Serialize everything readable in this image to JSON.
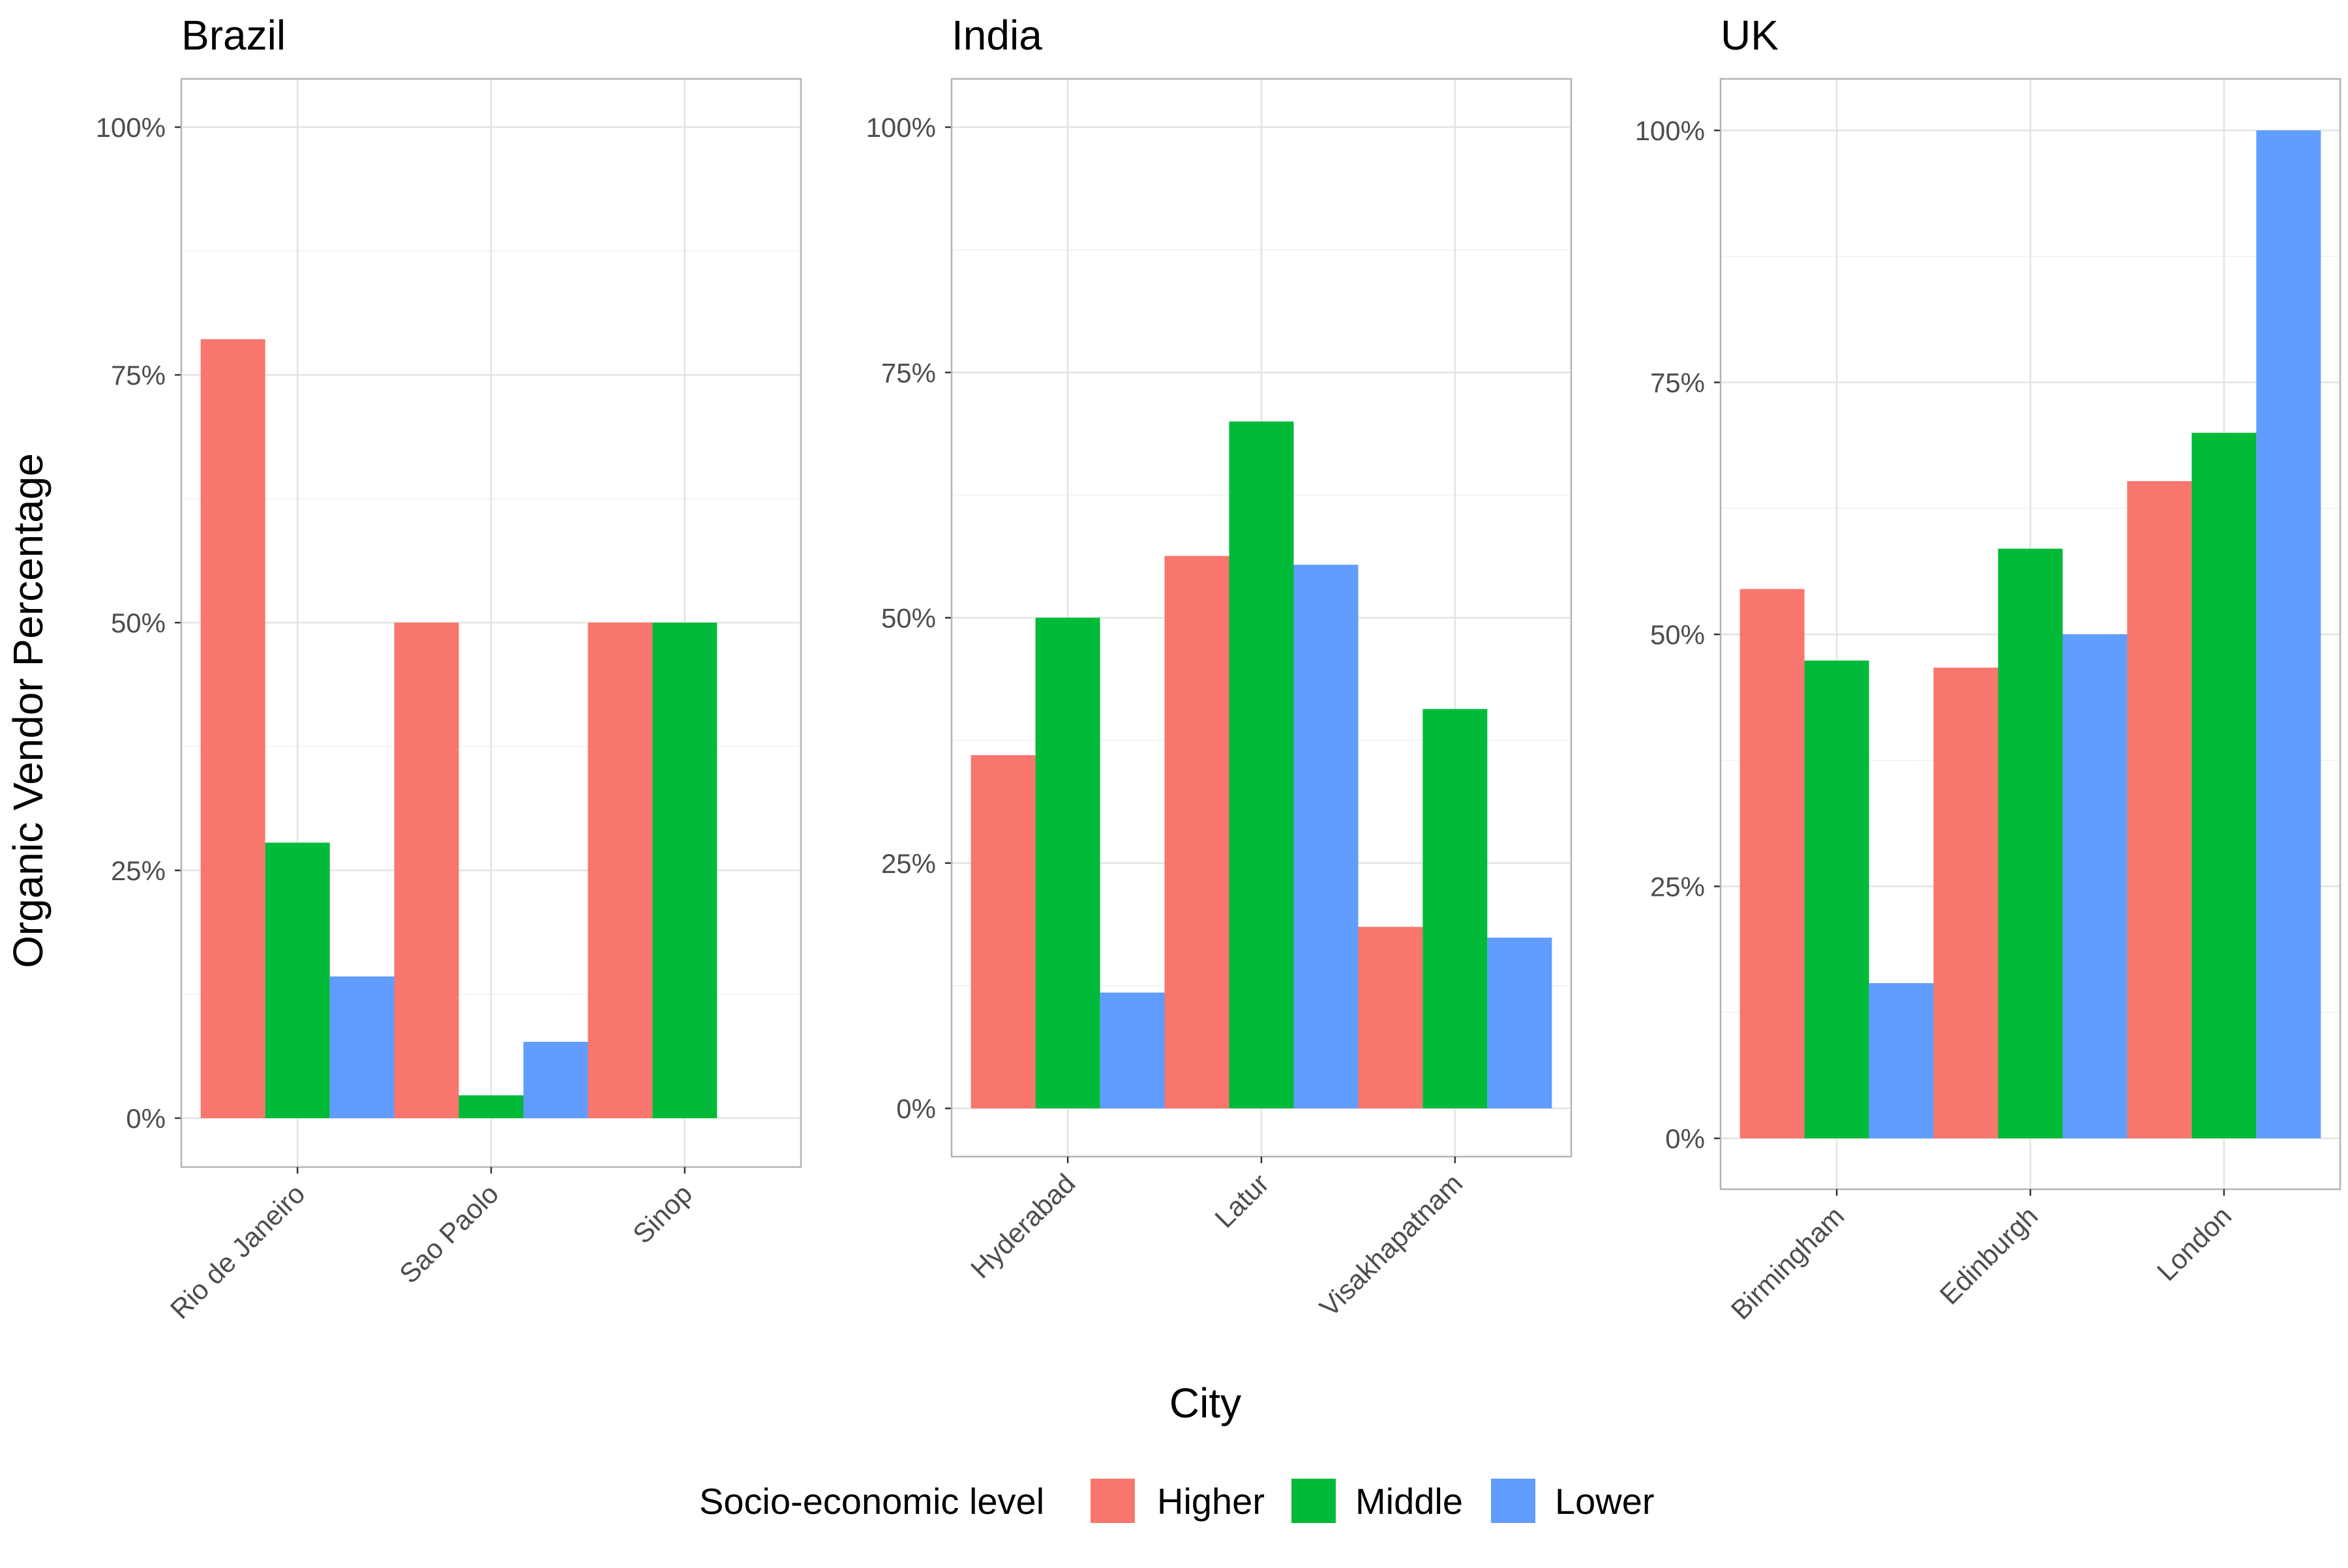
{
  "chart_data": {
    "type": "bar",
    "xlabel": "City",
    "ylabel": "Organic Vendor Percentage",
    "ylim": [
      0,
      1
    ],
    "y_ticks": [
      "0%",
      "25%",
      "50%",
      "75%",
      "100%"
    ],
    "grid": true,
    "legend": {
      "title": "Socio-economic level",
      "placement": "bottom",
      "entries": [
        "Higher",
        "Middle",
        "Lower"
      ]
    },
    "colors": {
      "Higher": "#F8766D",
      "Middle": "#00BA38",
      "Lower": "#619CFF"
    },
    "panels": [
      {
        "title": "Brazil",
        "categories": [
          "Rio de Janeiro",
          "Sao Paolo",
          "Sinop"
        ],
        "y_max": 1.0,
        "series": [
          {
            "name": "Higher",
            "values": [
              0.786,
              0.5,
              0.5
            ]
          },
          {
            "name": "Middle",
            "values": [
              0.278,
              0.023,
              0.5
            ]
          },
          {
            "name": "Lower",
            "values": [
              0.143,
              0.077,
              null
            ]
          }
        ]
      },
      {
        "title": "India",
        "categories": [
          "Hyderabad",
          "Latur",
          "Visakhapatnam"
        ],
        "y_max": 1.0,
        "series": [
          {
            "name": "Higher",
            "values": [
              0.36,
              0.563,
              0.185
            ]
          },
          {
            "name": "Middle",
            "values": [
              0.5,
              0.7,
              0.407
            ]
          },
          {
            "name": "Lower",
            "values": [
              0.118,
              0.554,
              0.174
            ]
          }
        ]
      },
      {
        "title": "UK",
        "categories": [
          "Birmingham",
          "Edinburgh",
          "London"
        ],
        "y_max": 1.0,
        "series": [
          {
            "name": "Higher",
            "values": [
              0.545,
              0.467,
              0.652
            ]
          },
          {
            "name": "Middle",
            "values": [
              0.474,
              0.585,
              0.7
            ]
          },
          {
            "name": "Lower",
            "values": [
              0.154,
              0.5,
              1.0
            ]
          }
        ]
      }
    ]
  }
}
